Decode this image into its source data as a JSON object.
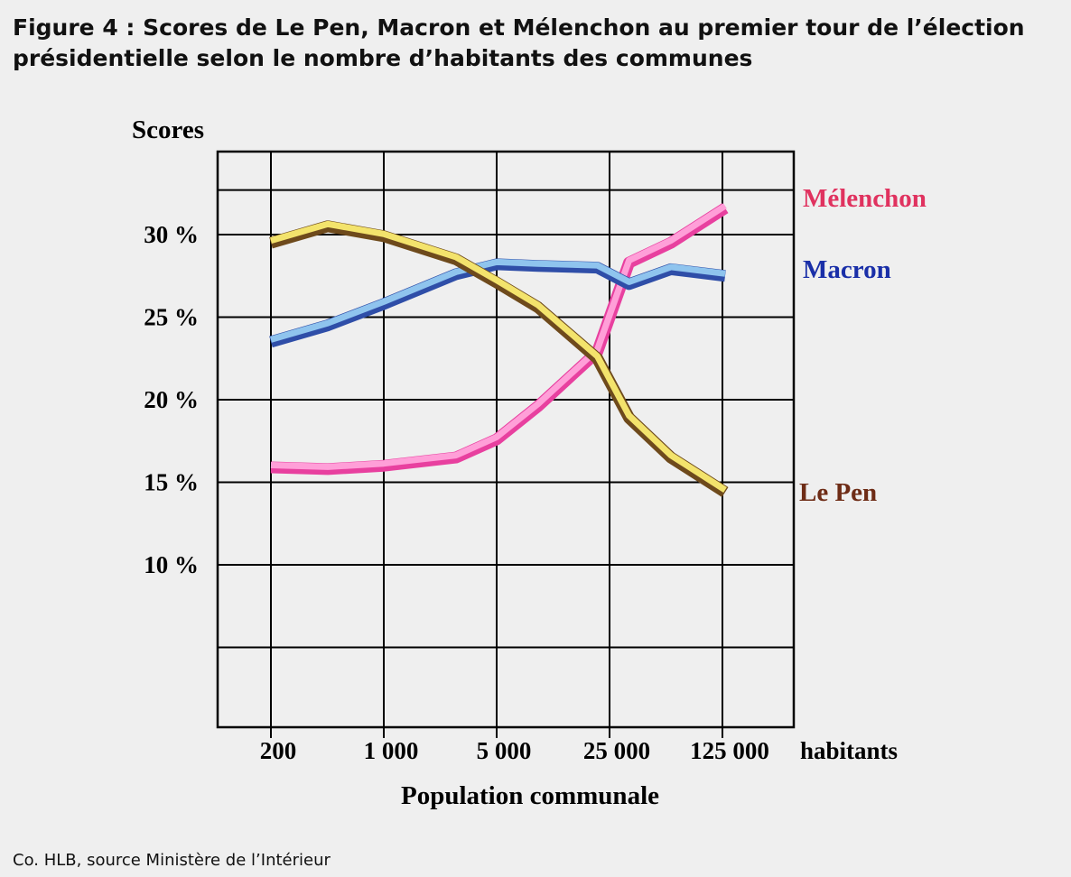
{
  "figure": {
    "title": "Figure 4 : Scores de Le Pen, Macron et Mélenchon au premier tour de l’élection présidentielle selon le nombre d’habitants des communes",
    "source": "Co. HLB, source Ministère de l’Intérieur"
  },
  "chart_data": {
    "type": "line",
    "ylabel": "Scores",
    "xlabel": "Population communale",
    "x_unit_label": "habitants",
    "x_scale": "log",
    "x_ticks": [
      200,
      1000,
      5000,
      25000,
      125000
    ],
    "x_tick_labels": [
      "200",
      "1 000",
      "5 000",
      "25 000",
      "125 000"
    ],
    "y_ticks": [
      10,
      15,
      20,
      25,
      30
    ],
    "y_tick_labels": [
      "10 %",
      "15 %",
      "20 %",
      "25 %",
      "30 %"
    ],
    "ylim": [
      0,
      34
    ],
    "grid": true,
    "x": [
      200,
      450,
      1000,
      2800,
      5000,
      9000,
      21000,
      33000,
      60000,
      130000
    ],
    "series": [
      {
        "name": "Mélenchon",
        "label_color": "#e0325f",
        "line_light": "#ff9fd8",
        "line_dark": "#e8409f",
        "values": [
          15.9,
          15.8,
          16.0,
          16.5,
          17.6,
          19.6,
          22.9,
          28.3,
          29.5,
          31.6
        ]
      },
      {
        "name": "Macron",
        "label_color": "#1a2fa8",
        "line_light": "#8fc4ee",
        "line_dark": "#2f4ea8",
        "values": [
          23.5,
          24.5,
          25.8,
          27.6,
          28.2,
          28.1,
          28.0,
          27.0,
          27.9,
          27.5
        ]
      },
      {
        "name": "Le Pen",
        "label_color": "#6e2c16",
        "line_light": "#f3e36c",
        "line_dark": "#6e4a1c",
        "values": [
          29.5,
          30.5,
          29.9,
          28.5,
          27.1,
          25.6,
          22.5,
          18.9,
          16.5,
          14.4
        ]
      }
    ]
  }
}
